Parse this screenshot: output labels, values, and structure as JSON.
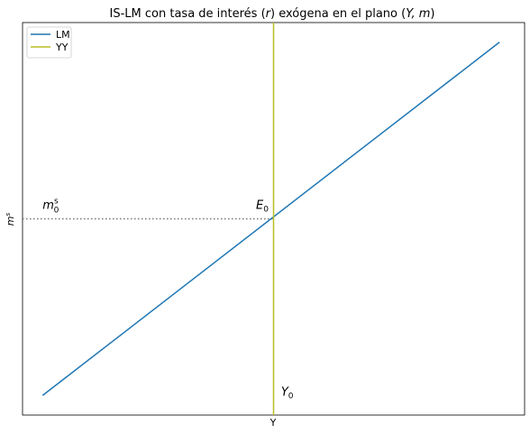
{
  "chart_data": {
    "type": "line",
    "title": "IS-LM con tasa de interés (r) exógena en el plano (Y, m)",
    "xlabel": "Y",
    "ylabel": "m^s",
    "xlim": [
      0,
      100
    ],
    "ylim": [
      0,
      100
    ],
    "grid": false,
    "legend_position": "top-left",
    "series": [
      {
        "name": "LM",
        "color": "#1f77b4",
        "x": [
          4,
          95
        ],
        "y": [
          5,
          95
        ]
      },
      {
        "name": "YY",
        "color": "#bcbd22",
        "x": [
          50,
          50
        ],
        "y": [
          0,
          100
        ]
      }
    ],
    "guide_line": {
      "from_x": 0,
      "to_x": 50,
      "y": 50,
      "style": "dotted",
      "color": "#777777"
    },
    "annotations": [
      {
        "id": "E0",
        "text": "E",
        "sub": "0",
        "x": 46.5,
        "y": 52.5
      },
      {
        "id": "m0s",
        "text": "m",
        "sub": "0",
        "sup": "s",
        "x": 4,
        "y": 52.5
      },
      {
        "id": "Y0",
        "text": "Y",
        "sub": "0",
        "x": 51.5,
        "y": 5
      }
    ]
  }
}
